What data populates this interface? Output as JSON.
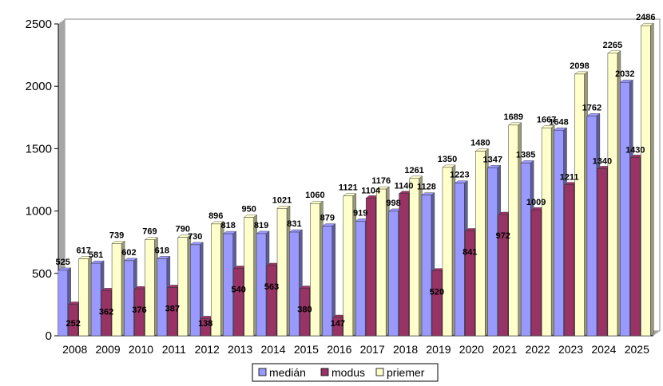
{
  "chart_data": {
    "type": "bar",
    "title": "",
    "xlabel": "",
    "ylabel": "",
    "ylim": [
      0,
      2500
    ],
    "yticks": [
      0,
      500,
      1000,
      1500,
      2000,
      2500
    ],
    "grid": false,
    "legend_position": "bottom",
    "categories": [
      "2008",
      "2009",
      "2010",
      "2011",
      "2012",
      "2013",
      "2014",
      "2015",
      "2016",
      "2017",
      "2018",
      "2019",
      "2020",
      "2021",
      "2022",
      "2023",
      "2024",
      "2025"
    ],
    "series": [
      {
        "name": "medián",
        "color": "#9999FF",
        "values": [
          525,
          581,
          602,
          618,
          730,
          818,
          819,
          831,
          879,
          919,
          998,
          1128,
          1223,
          1347,
          1385,
          1648,
          1762,
          2032
        ]
      },
      {
        "name": "modus",
        "color": "#993366",
        "values": [
          252,
          362,
          376,
          387,
          138,
          540,
          563,
          380,
          147,
          1104,
          1140,
          520,
          841,
          972,
          1009,
          1211,
          1340,
          1430
        ]
      },
      {
        "name": "priemer",
        "color": "#FFFFCC",
        "values": [
          617,
          739,
          769,
          790,
          896,
          950,
          1021,
          1060,
          1121,
          1176,
          1261,
          1350,
          1480,
          1689,
          1667,
          2098,
          2265,
          2486
        ]
      }
    ]
  }
}
